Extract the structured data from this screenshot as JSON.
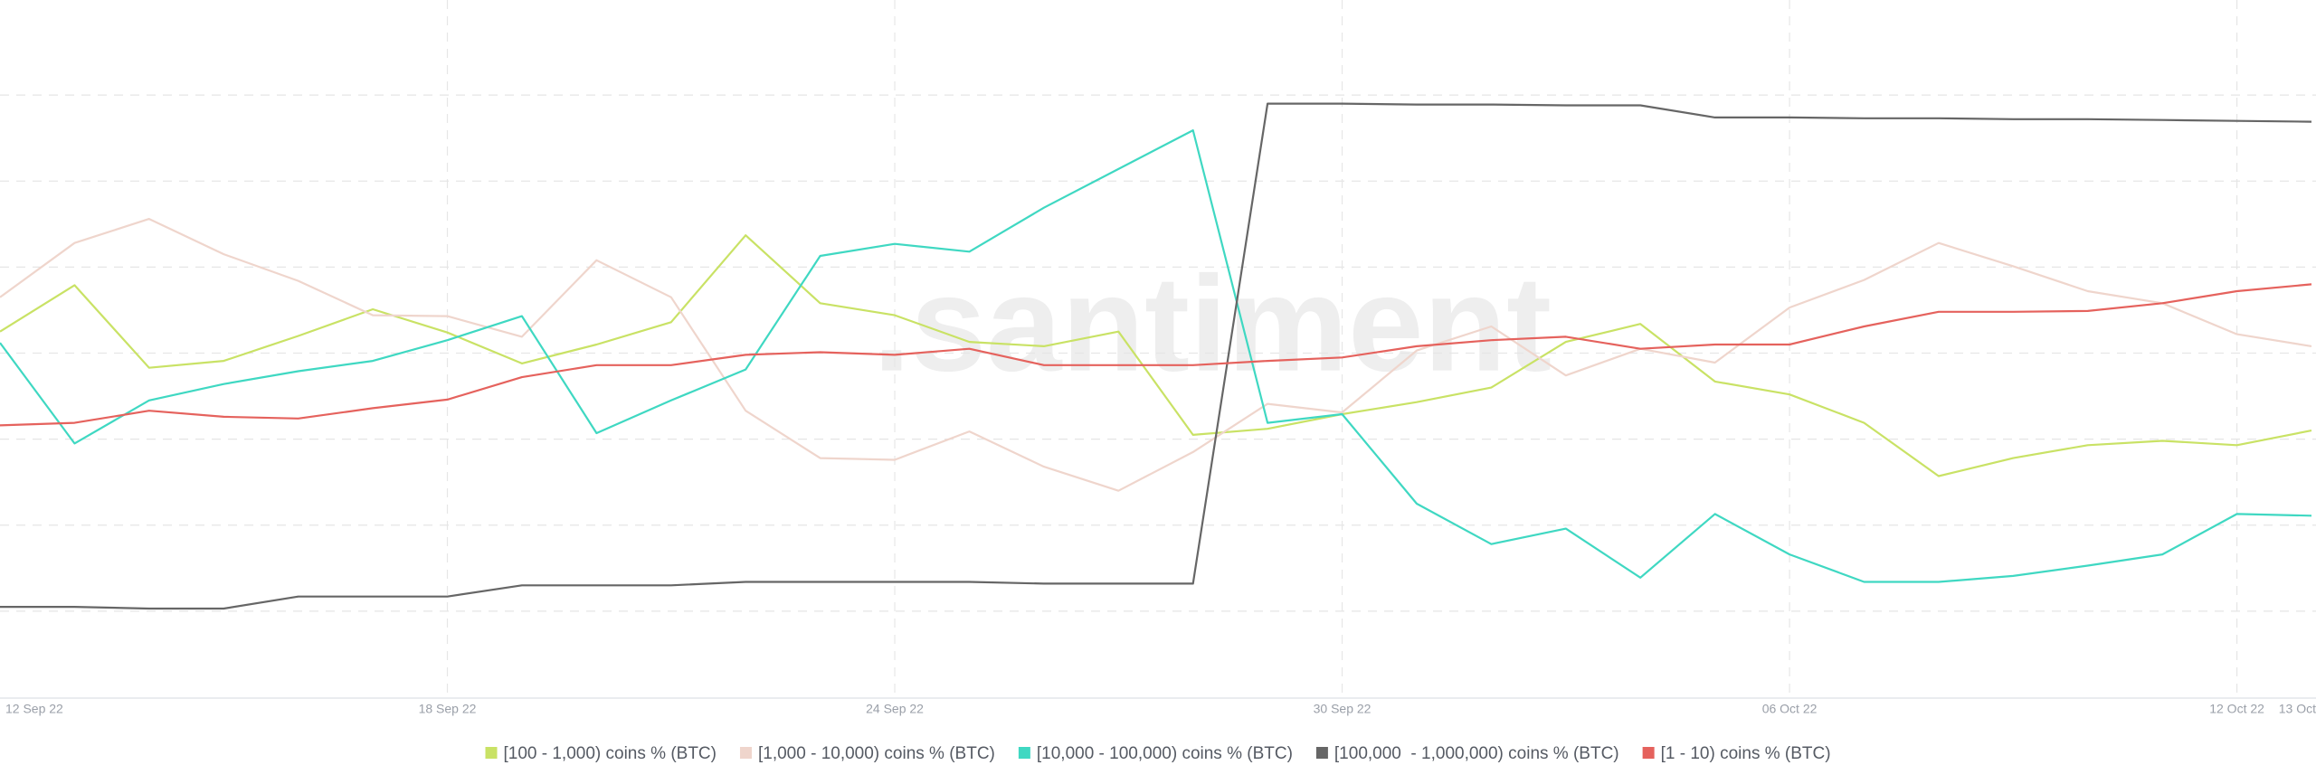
{
  "chart_data": {
    "type": "line",
    "watermark": ".santiment",
    "categories": [
      "12 Sep 22",
      null,
      null,
      null,
      null,
      null,
      "18 Sep 22",
      null,
      null,
      null,
      null,
      null,
      "24 Sep 22",
      null,
      null,
      null,
      null,
      null,
      "30 Sep 22",
      null,
      null,
      null,
      null,
      null,
      "06 Oct 22",
      null,
      null,
      null,
      null,
      null,
      "12 Oct 22",
      "13 Oct"
    ],
    "ylim": [
      0,
      8
    ],
    "grid": true,
    "legend": "bottom",
    "series": [
      {
        "name": "[100 - 1,000) coins % (BTC)",
        "color": "#c9e265",
        "values": [
          4.25,
          4.79,
          3.83,
          3.91,
          4.2,
          4.51,
          4.24,
          3.88,
          4.1,
          4.36,
          5.37,
          4.58,
          4.44,
          4.13,
          4.08,
          4.25,
          3.05,
          3.12,
          3.29,
          3.43,
          3.6,
          4.13,
          4.34,
          3.67,
          3.52,
          3.19,
          2.57,
          2.78,
          2.93,
          2.98,
          2.93,
          3.1
        ]
      },
      {
        "name": "[1,000 - 10,000) coins % (BTC)",
        "color": "#efd5cc",
        "values": [
          4.65,
          5.28,
          5.56,
          5.15,
          4.84,
          4.44,
          4.43,
          4.19,
          5.08,
          4.65,
          3.33,
          2.78,
          2.76,
          3.09,
          2.68,
          2.4,
          2.85,
          3.41,
          3.31,
          4.03,
          4.31,
          3.74,
          4.05,
          3.89,
          4.53,
          4.85,
          5.28,
          5.01,
          4.72,
          4.58,
          4.22,
          4.08
        ]
      },
      {
        "name": "[10,000 - 100,000) coins % (BTC)",
        "color": "#3fd8c2",
        "values": [
          4.12,
          2.95,
          3.45,
          3.64,
          3.79,
          3.91,
          4.15,
          4.43,
          3.07,
          3.45,
          3.81,
          5.13,
          5.27,
          5.18,
          5.69,
          6.14,
          6.59,
          3.19,
          3.29,
          2.25,
          1.78,
          1.96,
          1.39,
          2.13,
          1.66,
          1.34,
          1.34,
          1.41,
          1.53,
          1.66,
          2.13,
          2.11
        ]
      },
      {
        "name": "[100,000  - 1,000,000) coins % (BTC)",
        "color": "#666666",
        "values": [
          1.05,
          1.05,
          1.03,
          1.03,
          1.17,
          1.17,
          1.17,
          1.3,
          1.3,
          1.3,
          1.34,
          1.34,
          1.34,
          1.34,
          1.32,
          1.32,
          1.32,
          6.9,
          6.9,
          6.89,
          6.89,
          6.88,
          6.88,
          6.74,
          6.74,
          6.73,
          6.73,
          6.72,
          6.72,
          6.71,
          6.7,
          6.69
        ]
      },
      {
        "name": "[1 - 10) coins % (BTC)",
        "color": "#e5625d",
        "values": [
          3.16,
          3.19,
          3.33,
          3.26,
          3.24,
          3.36,
          3.46,
          3.72,
          3.86,
          3.86,
          3.98,
          4.01,
          3.98,
          4.05,
          3.86,
          3.86,
          3.86,
          3.91,
          3.95,
          4.08,
          4.15,
          4.19,
          4.05,
          4.1,
          4.1,
          4.31,
          4.48,
          4.48,
          4.49,
          4.58,
          4.72,
          4.8
        ]
      }
    ]
  }
}
